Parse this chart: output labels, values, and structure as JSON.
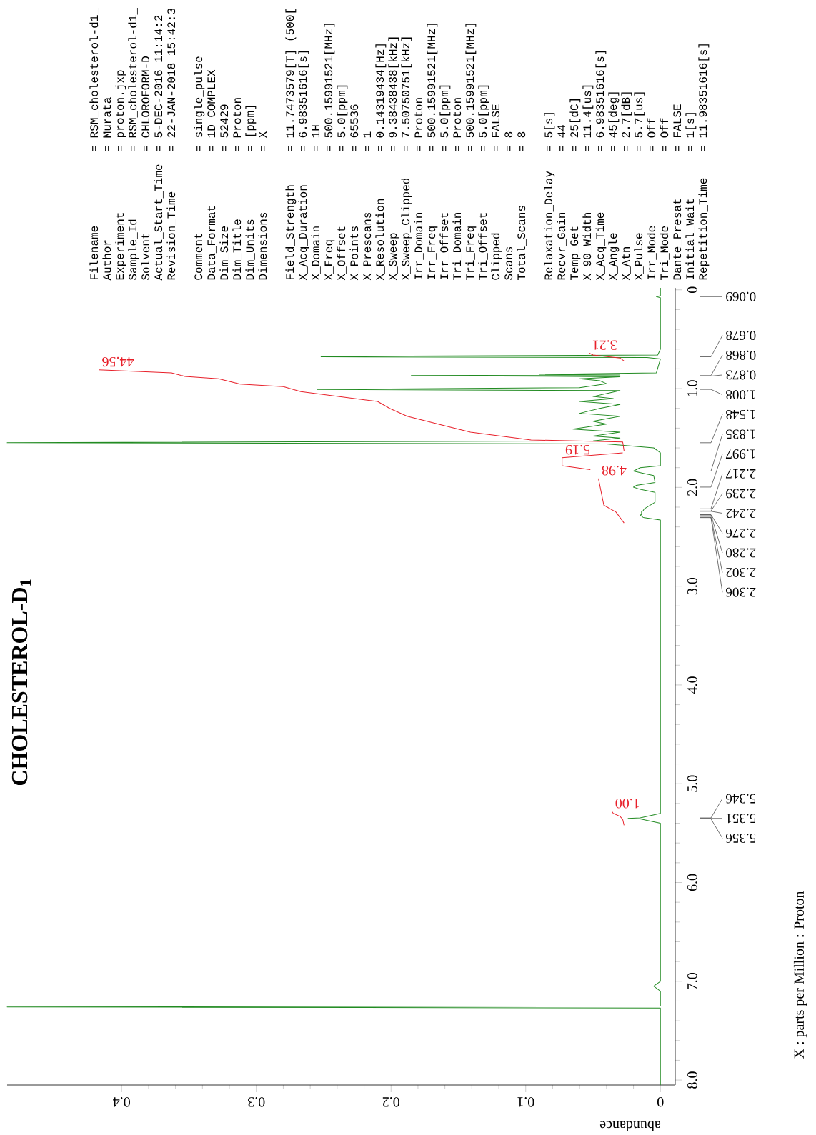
{
  "chart_data": {
    "type": "line",
    "title": "CHOLESTEROL-D$_{1}$",
    "xlabel": "abundance",
    "xlim": [
      0.485,
      -0.011
    ],
    "xticks": [
      {
        "value": 0,
        "label": "0"
      },
      {
        "value": 0.1,
        "label": "0.1"
      },
      {
        "value": 0.2,
        "label": "0.2"
      },
      {
        "value": 0.3,
        "label": "0.3"
      },
      {
        "value": 0.4,
        "label": "0.4"
      }
    ],
    "ylim": [
      8.05,
      -0.02
    ],
    "yticks": [
      {
        "value": 0,
        "label": "0"
      },
      {
        "value": 1,
        "label": "1.0"
      },
      {
        "value": 2,
        "label": "2.0"
      },
      {
        "value": 3,
        "label": "3.0"
      },
      {
        "value": 4,
        "label": "4.0"
      },
      {
        "value": 5,
        "label": "5.0"
      },
      {
        "value": 6,
        "label": "6.0"
      },
      {
        "value": 7,
        "label": "7.0"
      },
      {
        "value": 8,
        "label": "8.0"
      }
    ],
    "series": [
      {
        "color": "#228b22",
        "values": [
          -0.02,
          0.06,
          0.069,
          0.08,
          0.6,
          0.66,
          0.675,
          0.678,
          0.685,
          0.7,
          0.84,
          0.855,
          0.862,
          0.868,
          0.873,
          0.88,
          0.9,
          0.92,
          0.95,
          0.99,
          1.008,
          1.02,
          1.05,
          1.08,
          1.1,
          1.13,
          1.16,
          1.2,
          1.25,
          1.28,
          1.33,
          1.36,
          1.41,
          1.44,
          1.48,
          1.5,
          1.53,
          1.548,
          1.56,
          1.6,
          1.65,
          1.78,
          1.8,
          1.835,
          1.86,
          1.88,
          1.95,
          1.98,
          1.997,
          2.02,
          2.05,
          2.15,
          2.217,
          2.239,
          2.242,
          2.276,
          2.28,
          2.302,
          2.306,
          2.33,
          5.3,
          5.346,
          5.351,
          5.356,
          5.4,
          7.0,
          7.05,
          7.1,
          7.25,
          7.26,
          7.27,
          8.05
        ],
        "x": [
          0,
          0,
          0.003,
          0,
          0,
          0.002,
          0.25,
          0.252,
          0.01,
          0,
          0.003,
          0.09,
          0.03,
          0.185,
          0.12,
          0.03,
          0.06,
          0.045,
          0.04,
          0.06,
          0.255,
          0.03,
          0.04,
          0.05,
          0.035,
          0.06,
          0.03,
          0.045,
          0.06,
          0.03,
          0.05,
          0.04,
          0.065,
          0.03,
          0.05,
          0.03,
          0.05,
          0.485,
          0.04,
          0.005,
          0,
          0,
          0.015,
          0.02,
          0.012,
          0.005,
          0.004,
          0.018,
          0.02,
          0.015,
          0.004,
          0.004,
          0.012,
          0.013,
          0.014,
          0.014,
          0.015,
          0.013,
          0.012,
          0,
          0,
          0.015,
          0.024,
          0.015,
          0,
          0,
          0.005,
          0,
          0,
          0.485,
          0,
          0
        ]
      },
      {
        "name": "3.21",
        "color": "#e8202a",
        "values": [
          0.64,
          0.66,
          0.69,
          0.72
        ],
        "x": [
          0.053,
          0.05,
          0.03,
          0.027
        ]
      },
      {
        "name": "44.56",
        "color": "#e8202a",
        "values": [
          0.81,
          0.84,
          0.876,
          0.9,
          0.955,
          0.98,
          1.03,
          1.13,
          1.2,
          1.28,
          1.39,
          1.44,
          1.52,
          1.54,
          1.63
        ],
        "x": [
          0.417,
          0.363,
          0.353,
          0.328,
          0.312,
          0.28,
          0.267,
          0.21,
          0.201,
          0.188,
          0.156,
          0.141,
          0.096,
          0.028,
          0.027
        ]
      },
      {
        "name": "5.19",
        "color": "#e8202a",
        "values": [
          1.65,
          1.7,
          1.78,
          1.82
        ],
        "x": [
          0.028,
          0.073,
          0.073,
          0.052
        ]
      },
      {
        "name": "4.98",
        "color": "#e8202a",
        "values": [
          1.91,
          2.18,
          2.25,
          2.36
        ],
        "x": [
          0.046,
          0.042,
          0.033,
          0.027
        ]
      },
      {
        "name": "1.00",
        "color": "#e8202a",
        "values": [
          5.28,
          5.3,
          5.33,
          5.36,
          5.42
        ],
        "x": [
          0.036,
          0.035,
          0.03,
          0.028,
          0.027
        ]
      }
    ],
    "annotations": [
      "Filename",
      "= RSM_cholesterol-d1_",
      "Author",
      "= Murata",
      "Experiment",
      "= proton.jxp",
      "Sample_Id",
      "= RSM_cholesterol-d1_",
      "Solvent",
      "= CHLOROFORM-D",
      "Actual_Start_Time",
      "= 5-DEC-2016 11:14:2",
      "Revision_Time",
      "= 22-JAN-2018 15:42:3",
      "Comment",
      "= single_pulse",
      "Data_Format",
      "= 1D COMPLEX",
      "Dim_Size",
      "= 52429",
      "Dim_Title",
      "= Proton",
      "Dim_Units",
      "= [ppm]",
      "Dimensions",
      "= X",
      "Field_Strength",
      "= 11.7473579[T] (500[",
      "X_Acq_Duration",
      "= 6.98351616[s]",
      "X_Domain",
      "= 1H",
      "X_Freq",
      "= 500.15991521[MHz]",
      "X_Offset",
      "= 5.0[ppm]",
      "X_Points",
      "= 65536",
      "X_Prescans",
      "= 1",
      "X_Resolution",
      "= 0.14319434[Hz]",
      "X_Sweep",
      "= 9.38438438[kHz]",
      "X_Sweep_Clipped",
      "= 7.50750751[kHz]",
      "Irr_Domain",
      "= Proton",
      "Irr_Freq",
      "= 500.15991521[MHz]",
      "Irr_Offset",
      "= 5.0[ppm]",
      "Tri_Domain",
      "= Proton",
      "Tri_Freq",
      "= 500.15991521[MHz]",
      "Tri_Offset",
      "= 5.0[ppm]",
      "Clipped",
      "= FALSE",
      "Scans",
      "= 8",
      "Total_Scans",
      "= 8",
      "Relaxation_Delay",
      "= 5[s]",
      "Recvr_Gain",
      "= 44",
      "Temp_Get",
      "= 25[dC]",
      "X_90_Width",
      "= 11.4[us]",
      "X_Acq_Time",
      "= 6.98351616[s]",
      "X_Angle",
      "= 45[deg]",
      "X_Atn",
      "= 2.7[dB]",
      "X_Pulse",
      "= 5.7[us]",
      "Irr_Mode",
      "= Off",
      "Tri_Mode",
      "= Off",
      "Dante_Presat",
      "= FALSE",
      "Initial_Wait",
      "= 1[s]",
      "Repetition_Time",
      "= 11.98351616[s]",
      "X : parts per Million : Proton",
      "0.069",
      "0.678",
      "0.868",
      "0.873",
      "1.008",
      "1.548",
      "1.835",
      "1.997",
      "2.217",
      "2.239",
      "2.242",
      "2.276",
      "2.280",
      "2.302",
      "2.306",
      "5.346",
      "5.351",
      "5.356"
    ]
  }
}
